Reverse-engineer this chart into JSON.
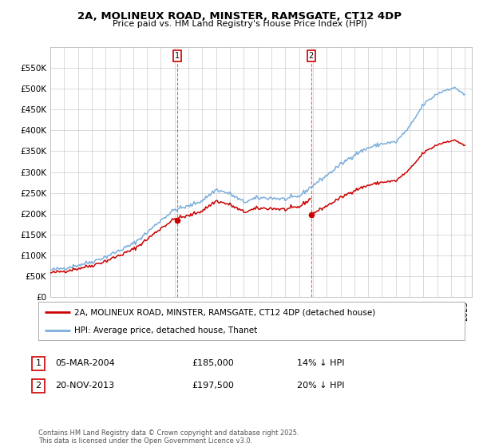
{
  "title": "2A, MOLINEUX ROAD, MINSTER, RAMSGATE, CT12 4DP",
  "subtitle": "Price paid vs. HM Land Registry's House Price Index (HPI)",
  "ylim": [
    0,
    600000
  ],
  "yticks": [
    0,
    50000,
    100000,
    150000,
    200000,
    250000,
    300000,
    350000,
    400000,
    450000,
    500000,
    550000
  ],
  "sale1_date": "05-MAR-2004",
  "sale1_price": 185000,
  "sale1_year": 2004.17,
  "sale1_hpi_diff": "14% ↓ HPI",
  "sale2_date": "20-NOV-2013",
  "sale2_price": 197500,
  "sale2_year": 2013.87,
  "sale2_hpi_diff": "20% ↓ HPI",
  "legend_house": "2A, MOLINEUX ROAD, MINSTER, RAMSGATE, CT12 4DP (detached house)",
  "legend_hpi": "HPI: Average price, detached house, Thanet",
  "footer": "Contains HM Land Registry data © Crown copyright and database right 2025.\nThis data is licensed under the Open Government Licence v3.0.",
  "house_color": "#cc0000",
  "hpi_color": "#7aaedc",
  "vline_color": "#cc0000",
  "marker_color": "#cc0000",
  "background_color": "#ffffff",
  "grid_color": "#cccccc",
  "xmin": 1995,
  "xmax": 2025.5,
  "hpi_anchors_x": [
    1995,
    1996,
    1997,
    1998,
    1999,
    2000,
    2001,
    2002,
    2003,
    2004,
    2005,
    2006,
    2007,
    2008,
    2009,
    2010,
    2011,
    2012,
    2013,
    2014,
    2015,
    2016,
    2017,
    2018,
    2019,
    2020,
    2021,
    2022,
    2023,
    2024,
    2024.5,
    2025
  ],
  "hpi_anchors_y": [
    65000,
    70000,
    77000,
    85000,
    97000,
    112000,
    128000,
    155000,
    185000,
    210000,
    218000,
    232000,
    258000,
    248000,
    228000,
    238000,
    238000,
    235000,
    242000,
    268000,
    292000,
    318000,
    342000,
    358000,
    368000,
    372000,
    408000,
    462000,
    488000,
    502000,
    498000,
    485000
  ]
}
